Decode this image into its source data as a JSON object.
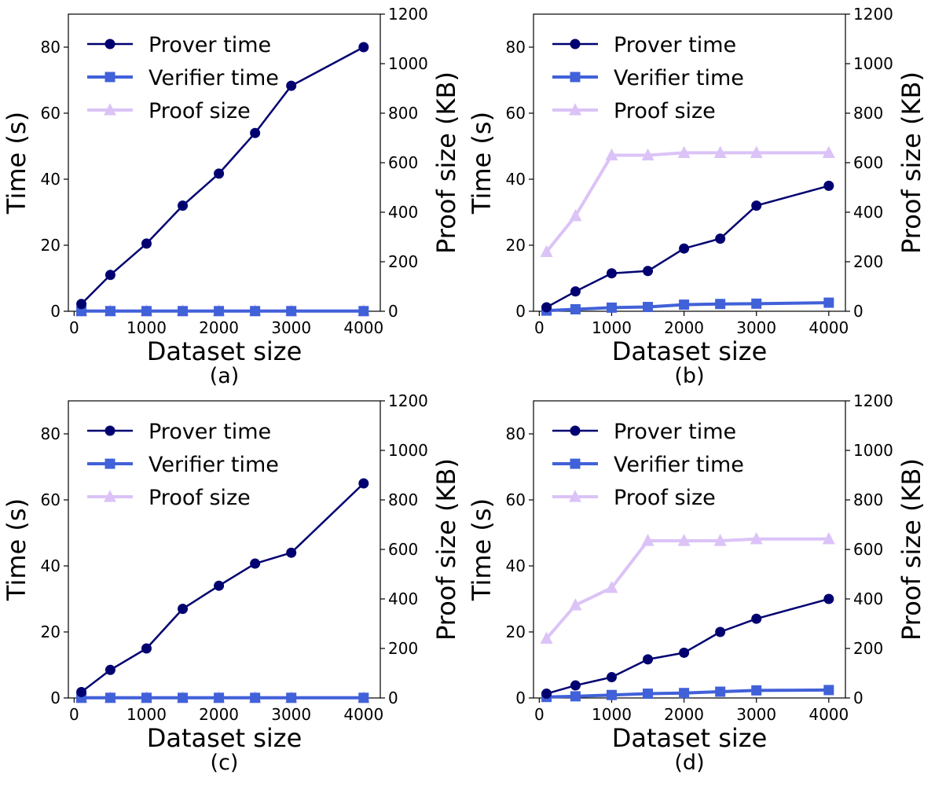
{
  "colors": {
    "prover": "#000070",
    "verifier": "#4161d9",
    "proof": "#dbc3f7"
  },
  "chart_data": [
    {
      "type": "line",
      "panel_label": "(a)",
      "xlabel": "Dataset size",
      "ylabel": "Time (s)",
      "ylabel_right": "Proof size (KB)",
      "xlim": [
        -80,
        4230
      ],
      "ylim": [
        0,
        90
      ],
      "ylim_right": [
        0,
        1200
      ],
      "xticks": [
        0,
        1000,
        2000,
        3000,
        4000
      ],
      "yticks": [
        0,
        20,
        40,
        60,
        80
      ],
      "yticks_right": [
        0,
        200,
        400,
        600,
        800,
        1000,
        1200
      ],
      "legend": "upper-left",
      "x": [
        100,
        500,
        1000,
        1500,
        2000,
        2500,
        3000,
        4000
      ],
      "series": [
        {
          "name": "Prover time",
          "axis": "left",
          "marker": "circle",
          "values": [
            2.2,
            11,
            20.5,
            32,
            41.7,
            54,
            68.3,
            80
          ]
        },
        {
          "name": "Verifier time",
          "axis": "left",
          "marker": "square",
          "values": [
            0.05,
            0.05,
            0.05,
            0.05,
            0.05,
            0.05,
            0.05,
            0.05
          ]
        },
        {
          "name": "Proof size",
          "axis": "right",
          "marker": "triangle",
          "values": [
            1,
            1,
            1,
            1,
            1,
            1,
            1,
            1
          ]
        }
      ]
    },
    {
      "type": "line",
      "panel_label": "(b)",
      "xlabel": "Dataset size",
      "ylabel": "Time (s)",
      "ylabel_right": "Proof size (KB)",
      "xlim": [
        -80,
        4230
      ],
      "ylim": [
        0,
        90
      ],
      "ylim_right": [
        0,
        1200
      ],
      "xticks": [
        0,
        1000,
        2000,
        3000,
        4000
      ],
      "yticks": [
        0,
        20,
        40,
        60,
        80
      ],
      "yticks_right": [
        0,
        200,
        400,
        600,
        800,
        1000,
        1200
      ],
      "legend": "upper-left",
      "x": [
        100,
        500,
        1000,
        1500,
        2000,
        2500,
        3000,
        4000
      ],
      "series": [
        {
          "name": "Prover time",
          "axis": "left",
          "marker": "circle",
          "values": [
            1.2,
            6,
            11.5,
            12.2,
            19,
            22,
            32,
            38
          ]
        },
        {
          "name": "Verifier time",
          "axis": "left",
          "marker": "square",
          "values": [
            0.2,
            0.6,
            1.1,
            1.3,
            2.0,
            2.2,
            2.3,
            2.6
          ]
        },
        {
          "name": "Proof size",
          "axis": "right",
          "marker": "triangle",
          "values": [
            240,
            385,
            630,
            630,
            640,
            640,
            640,
            640
          ]
        }
      ]
    },
    {
      "type": "line",
      "panel_label": "(c)",
      "xlabel": "Dataset size",
      "ylabel": "Time (s)",
      "ylabel_right": "Proof size (KB)",
      "xlim": [
        -80,
        4230
      ],
      "ylim": [
        0,
        90
      ],
      "ylim_right": [
        0,
        1200
      ],
      "xticks": [
        0,
        1000,
        2000,
        3000,
        4000
      ],
      "yticks": [
        0,
        20,
        40,
        60,
        80
      ],
      "yticks_right": [
        0,
        200,
        400,
        600,
        800,
        1000,
        1200
      ],
      "legend": "upper-left",
      "x": [
        100,
        500,
        1000,
        1500,
        2000,
        2500,
        3000,
        4000
      ],
      "series": [
        {
          "name": "Prover time",
          "axis": "left",
          "marker": "circle",
          "values": [
            1.8,
            8.5,
            15,
            27,
            34,
            40.7,
            44,
            65
          ]
        },
        {
          "name": "Verifier time",
          "axis": "left",
          "marker": "square",
          "values": [
            0.05,
            0.05,
            0.05,
            0.05,
            0.05,
            0.05,
            0.05,
            0.05
          ]
        },
        {
          "name": "Proof size",
          "axis": "right",
          "marker": "triangle",
          "values": [
            1,
            1,
            1,
            1,
            1,
            1,
            1,
            1
          ]
        }
      ]
    },
    {
      "type": "line",
      "panel_label": "(d)",
      "xlabel": "Dataset size",
      "ylabel": "Time (s)",
      "ylabel_right": "Proof size (KB)",
      "xlim": [
        -80,
        4230
      ],
      "ylim": [
        0,
        90
      ],
      "ylim_right": [
        0,
        1200
      ],
      "xticks": [
        0,
        1000,
        2000,
        3000,
        4000
      ],
      "yticks": [
        0,
        20,
        40,
        60,
        80
      ],
      "yticks_right": [
        0,
        200,
        400,
        600,
        800,
        1000,
        1200
      ],
      "legend": "upper-left",
      "x": [
        100,
        500,
        1000,
        1500,
        2000,
        2500,
        3000,
        4000
      ],
      "series": [
        {
          "name": "Prover time",
          "axis": "left",
          "marker": "circle",
          "values": [
            1.3,
            3.8,
            6.3,
            11.7,
            13.7,
            20,
            24,
            30
          ]
        },
        {
          "name": "Verifier time",
          "axis": "left",
          "marker": "square",
          "values": [
            0.3,
            0.5,
            0.9,
            1.3,
            1.5,
            1.9,
            2.3,
            2.4
          ]
        },
        {
          "name": "Proof size",
          "axis": "right",
          "marker": "triangle",
          "values": [
            240,
            375,
            445,
            635,
            635,
            635,
            642,
            642
          ]
        }
      ]
    }
  ]
}
